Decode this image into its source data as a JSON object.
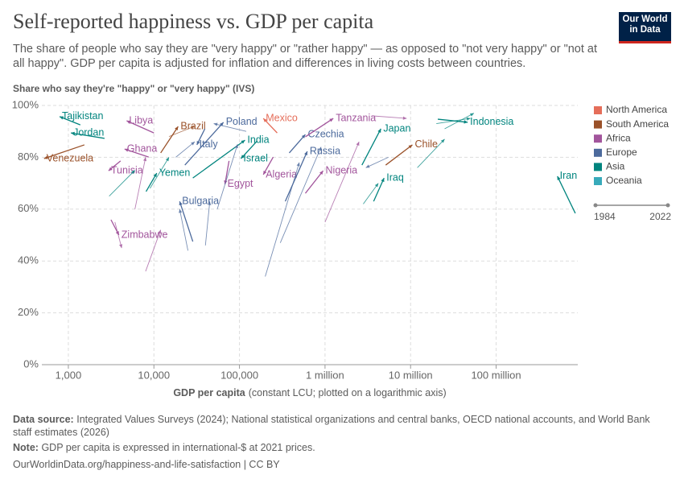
{
  "chart_data": {
    "type": "arrow-scatter",
    "title": "Self-reported happiness vs. GDP per capita",
    "subtitle": "The share of people who say they are \"very happy\" or \"rather happy\" — as opposed to \"not very happy\" or \"not at all happy\". GDP per capita is adjusted for inflation and differences in living costs between countries.",
    "y_label": "Share who say they're \"happy\" or \"very happy\" (IVS)",
    "x_label": "GDP per capita",
    "x_label_note": "(constant LCU; plotted on a logarithmic axis)",
    "log_x": true,
    "grid": true,
    "xlim": [
      490,
      900000000
    ],
    "xticks": [
      {
        "value": 1000,
        "label": "1,000"
      },
      {
        "value": 10000,
        "label": "10,000"
      },
      {
        "value": 100000,
        "label": "100,000"
      },
      {
        "value": 1000000,
        "label": "1 million"
      },
      {
        "value": 10000000,
        "label": "10 million"
      },
      {
        "value": 100000000,
        "label": "100 million"
      }
    ],
    "ylim": [
      0,
      100
    ],
    "yticks": [
      {
        "value": 0,
        "label": "0%"
      },
      {
        "value": 20,
        "label": "20%"
      },
      {
        "value": 40,
        "label": "40%"
      },
      {
        "value": 60,
        "label": "60%"
      },
      {
        "value": 80,
        "label": "80%"
      },
      {
        "value": 100,
        "label": "100%"
      }
    ],
    "legend": [
      {
        "name": "North America",
        "color": "#E56E5A"
      },
      {
        "name": "South America",
        "color": "#9A5129"
      },
      {
        "name": "Africa",
        "color": "#A2559C"
      },
      {
        "name": "Europe",
        "color": "#4C6A9C"
      },
      {
        "name": "Asia",
        "color": "#00847E"
      },
      {
        "name": "Oceania",
        "color": "#38AABA"
      }
    ],
    "timeline": [
      "1984",
      "2022"
    ],
    "series": [
      {
        "name": "Tajikistan",
        "color": "#00847E",
        "x": [
          1380,
          790
        ],
        "values": [
          92.5,
          95.7
        ]
      },
      {
        "name": "Jordan",
        "color": "#00847E",
        "x": [
          2650,
          1070
        ],
        "values": [
          87.3,
          89.4
        ]
      },
      {
        "name": "Venezuela",
        "color": "#9A5129",
        "x": [
          1540,
          520
        ],
        "values": [
          84.8,
          79.5
        ]
      },
      {
        "name": "Libya",
        "color": "#A2559C",
        "x": [
          10000,
          4800
        ],
        "values": [
          89.4,
          94.1
        ]
      },
      {
        "name": "Ghana",
        "color": "#A2559C",
        "x": [
          8690,
          4540
        ],
        "values": [
          80.1,
          83.2
        ]
      },
      {
        "name": "Tunisia",
        "color": "#A2559C",
        "x": [
          4080,
          2950
        ],
        "values": [
          78.6,
          74.8
        ]
      },
      {
        "name": "Zimbabwe",
        "color": "#A2559C",
        "x": [
          3150,
          3900
        ],
        "values": [
          55.9,
          50
        ]
      },
      {
        "name": "Yemen",
        "color": "#00847E",
        "x": [
          8100,
          10800
        ],
        "values": [
          66.8,
          73.9
        ]
      },
      {
        "name": "Brazil",
        "color": "#9A5129",
        "x": [
          12000,
          19200
        ],
        "values": [
          81.7,
          91.9
        ]
      },
      {
        "name": "Italy",
        "color": "#4C6A9C",
        "x": [
          39400,
          31800
        ],
        "values": [
          91,
          84.8
        ]
      },
      {
        "name": "Poland",
        "color": "#4C6A9C",
        "x": [
          23000,
          65000
        ],
        "values": [
          77,
          93.5
        ]
      },
      {
        "name": "Mexico",
        "color": "#E56E5A",
        "x": [
          276000,
          190000
        ],
        "values": [
          89.4,
          95
        ]
      },
      {
        "name": "India",
        "color": "#00847E",
        "x": [
          28500,
          116000
        ],
        "values": [
          72,
          86.6
        ]
      },
      {
        "name": "Israel",
        "color": "#00847E",
        "x": [
          161000,
          104000
        ],
        "values": [
          86.3,
          79.5
        ]
      },
      {
        "name": "Egypt",
        "color": "#A2559C",
        "x": [
          75500,
          67700
        ],
        "values": [
          78.6,
          69.6
        ]
      },
      {
        "name": "Bulgaria",
        "color": "#4C6A9C",
        "x": [
          28500,
          20000
        ],
        "values": [
          47.5,
          63
        ]
      },
      {
        "name": "Algeria",
        "color": "#A2559C",
        "x": [
          248000,
          190000
        ],
        "values": [
          80.1,
          73.3
        ]
      },
      {
        "name": "Czechia",
        "color": "#4C6A9C",
        "x": [
          382000,
          589000
        ],
        "values": [
          81.7,
          88.8
        ]
      },
      {
        "name": "Russia",
        "color": "#4C6A9C",
        "x": [
          343000,
          620000
        ],
        "values": [
          63,
          82.3
        ]
      },
      {
        "name": "Nigeria",
        "color": "#A2559C",
        "x": [
          589000,
          950000
        ],
        "values": [
          66.1,
          74.8
        ]
      },
      {
        "name": "Tanzania",
        "color": "#A2559C",
        "x": [
          589000,
          1250000
        ],
        "values": [
          87.9,
          95
        ]
      },
      {
        "name": "Japan",
        "color": "#00847E",
        "x": [
          2700000,
          4500000
        ],
        "values": [
          77,
          91
        ]
      },
      {
        "name": "Iraq",
        "color": "#00847E",
        "x": [
          3700000,
          4900000
        ],
        "values": [
          63,
          72
        ]
      },
      {
        "name": "Chile",
        "color": "#9A5129",
        "x": [
          5120000,
          10500000
        ],
        "values": [
          77,
          84.8
        ]
      },
      {
        "name": "Indonesia",
        "color": "#00847E",
        "x": [
          20800000,
          46500000
        ],
        "values": [
          94.7,
          93.5
        ]
      },
      {
        "name": "Iran",
        "color": "#00847E",
        "x": [
          842000000,
          520000000
        ],
        "values": [
          58.4,
          72.7
        ]
      },
      {
        "name": null,
        "color": "#A2559C",
        "x": [
          3500,
          4200
        ],
        "values": [
          55,
          45
        ]
      },
      {
        "name": null,
        "color": "#A2559C",
        "x": [
          8000,
          12000
        ],
        "values": [
          36,
          52
        ]
      },
      {
        "name": null,
        "color": "#4C6A9C",
        "x": [
          25000,
          20000
        ],
        "values": [
          44,
          60
        ]
      },
      {
        "name": null,
        "color": "#4C6A9C",
        "x": [
          40000,
          45000
        ],
        "values": [
          46,
          63
        ]
      },
      {
        "name": null,
        "color": "#4C6A9C",
        "x": [
          55000,
          95000
        ],
        "values": [
          60,
          85
        ]
      },
      {
        "name": null,
        "color": "#00847E",
        "x": [
          3000,
          6000
        ],
        "values": [
          65,
          75
        ]
      },
      {
        "name": null,
        "color": "#00847E",
        "x": [
          9000,
          15000
        ],
        "values": [
          68,
          80
        ]
      },
      {
        "name": null,
        "color": "#4C6A9C",
        "x": [
          200000,
          500000
        ],
        "values": [
          34,
          78
        ]
      },
      {
        "name": null,
        "color": "#4C6A9C",
        "x": [
          300000,
          900000
        ],
        "values": [
          47,
          84
        ]
      },
      {
        "name": null,
        "color": "#00847E",
        "x": [
          2800000,
          4200000
        ],
        "values": [
          62,
          70
        ]
      },
      {
        "name": null,
        "color": "#00847E",
        "x": [
          20000000,
          50000000
        ],
        "values": [
          93,
          95
        ]
      },
      {
        "name": null,
        "color": "#00847E",
        "x": [
          25000000,
          55000000
        ],
        "values": [
          91,
          97
        ]
      },
      {
        "name": null,
        "color": "#A2559C",
        "x": [
          1000000,
          2500000
        ],
        "values": [
          55,
          86
        ]
      },
      {
        "name": null,
        "color": "#9A5129",
        "x": [
          15000,
          30000
        ],
        "values": [
          88,
          92
        ]
      },
      {
        "name": null,
        "color": "#4C6A9C",
        "x": [
          120000,
          50000
        ],
        "values": [
          90,
          93
        ]
      },
      {
        "name": null,
        "color": "#4C6A9C",
        "x": [
          18000,
          30000
        ],
        "values": [
          80,
          86
        ]
      },
      {
        "name": null,
        "color": "#A2559C",
        "x": [
          6000,
          8000
        ],
        "values": [
          60,
          80
        ]
      },
      {
        "name": null,
        "color": "#00847E",
        "x": [
          12000000,
          25000000
        ],
        "values": [
          76,
          87
        ]
      },
      {
        "name": null,
        "color": "#4C6A9C",
        "x": [
          5500000,
          3000000
        ],
        "values": [
          80,
          76
        ]
      },
      {
        "name": null,
        "color": "#A2559C",
        "x": [
          3500000,
          9000000
        ],
        "values": [
          96,
          95
        ]
      }
    ],
    "logo": "Our World in Data",
    "source_label": "Data source:",
    "source": "Integrated Values Surveys (2024); National statistical organizations and central banks, OECD national accounts, and World Bank staff estimates (2026)",
    "note_label": "Note:",
    "note": "GDP per capita is expressed in international-$ at 2021 prices.",
    "url": "OurWorldinData.org/happiness-and-life-satisfaction | CC BY"
  }
}
